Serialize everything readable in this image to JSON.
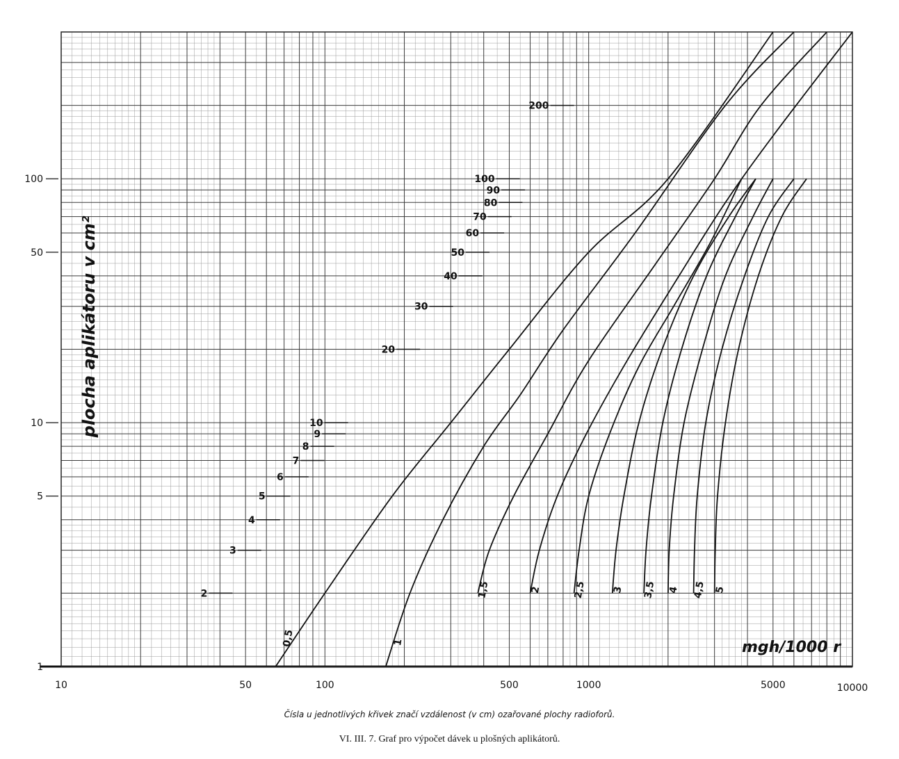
{
  "chart_data": {
    "type": "line",
    "xscale": "log",
    "yscale": "log",
    "xlim": [
      10,
      10000
    ],
    "ylim": [
      1,
      400
    ],
    "grid": true,
    "ylabel": "plocha aplikátoru v cm²",
    "xlabel": "mgh/1000 r",
    "x_ticks": [
      {
        "value": 10,
        "label": "10"
      },
      {
        "value": 50,
        "label": "50"
      },
      {
        "value": 100,
        "label": "100"
      },
      {
        "value": 500,
        "label": "500"
      },
      {
        "value": 1000,
        "label": "1000"
      },
      {
        "value": 5000,
        "label": "5000"
      },
      {
        "value": 10000,
        "label": "10000"
      }
    ],
    "y_ticks": [
      {
        "value": 1,
        "label": "1"
      },
      {
        "value": 5,
        "label": "5"
      },
      {
        "value": 10,
        "label": "10"
      },
      {
        "value": 50,
        "label": "50"
      },
      {
        "value": 100,
        "label": "100"
      }
    ],
    "distance_scale": [
      {
        "label": "2",
        "x": 35,
        "y": 2
      },
      {
        "label": "3",
        "x": 45,
        "y": 3
      },
      {
        "label": "4",
        "x": 53,
        "y": 4
      },
      {
        "label": "5",
        "x": 58,
        "y": 5
      },
      {
        "label": "6",
        "x": 68,
        "y": 6
      },
      {
        "label": "7",
        "x": 78,
        "y": 7
      },
      {
        "label": "8",
        "x": 85,
        "y": 8
      },
      {
        "label": "9",
        "x": 94,
        "y": 9
      },
      {
        "label": "10",
        "x": 96,
        "y": 10
      },
      {
        "label": "20",
        "x": 180,
        "y": 20
      },
      {
        "label": "30",
        "x": 240,
        "y": 30
      },
      {
        "label": "40",
        "x": 310,
        "y": 40
      },
      {
        "label": "50",
        "x": 330,
        "y": 50
      },
      {
        "label": "60",
        "x": 375,
        "y": 60
      },
      {
        "label": "70",
        "x": 400,
        "y": 70
      },
      {
        "label": "80",
        "x": 440,
        "y": 80
      },
      {
        "label": "90",
        "x": 450,
        "y": 90
      },
      {
        "label": "100",
        "x": 430,
        "y": 100
      },
      {
        "label": "200",
        "x": 690,
        "y": 200
      }
    ],
    "series": [
      {
        "name": "0,5",
        "points": [
          [
            65,
            1
          ],
          [
            100,
            2
          ],
          [
            180,
            5
          ],
          [
            300,
            10
          ],
          [
            500,
            20
          ],
          [
            1000,
            50
          ],
          [
            2000,
            100
          ],
          [
            5000,
            400
          ]
        ]
      },
      {
        "name": "1",
        "points": [
          [
            170,
            1
          ],
          [
            210,
            2
          ],
          [
            280,
            4
          ],
          [
            400,
            8
          ],
          [
            550,
            13
          ],
          [
            800,
            24
          ],
          [
            1500,
            60
          ],
          [
            3300,
            200
          ],
          [
            6000,
            400
          ]
        ]
      },
      {
        "name": "1,5",
        "points": [
          [
            380,
            2
          ],
          [
            420,
            3
          ],
          [
            520,
            5
          ],
          [
            700,
            9
          ],
          [
            1000,
            18
          ],
          [
            1800,
            45
          ],
          [
            3000,
            100
          ],
          [
            4500,
            200
          ],
          [
            8000,
            400
          ]
        ]
      },
      {
        "name": "2",
        "points": [
          [
            600,
            2
          ],
          [
            650,
            3
          ],
          [
            760,
            5
          ],
          [
            980,
            9
          ],
          [
            1400,
            18
          ],
          [
            2200,
            40
          ],
          [
            3300,
            80
          ],
          [
            5000,
            150
          ],
          [
            10000,
            400
          ]
        ]
      },
      {
        "name": "2,5",
        "points": [
          [
            880,
            2
          ],
          [
            920,
            3
          ],
          [
            1000,
            5
          ],
          [
            1200,
            9
          ],
          [
            1550,
            17
          ],
          [
            2100,
            30
          ],
          [
            2900,
            55
          ],
          [
            3800,
            100
          ]
        ]
      },
      {
        "name": "3",
        "points": [
          [
            1230,
            2
          ],
          [
            1270,
            3
          ],
          [
            1360,
            5
          ],
          [
            1550,
            10
          ],
          [
            1900,
            20
          ],
          [
            2500,
            40
          ],
          [
            3400,
            70
          ],
          [
            4300,
            100
          ]
        ]
      },
      {
        "name": "3,5",
        "points": [
          [
            1620,
            2
          ],
          [
            1650,
            3
          ],
          [
            1730,
            5
          ],
          [
            1910,
            10
          ],
          [
            2250,
            20
          ],
          [
            2800,
            40
          ],
          [
            3600,
            70
          ],
          [
            4300,
            100
          ]
        ]
      },
      {
        "name": "4",
        "points": [
          [
            2000,
            2
          ],
          [
            2020,
            3
          ],
          [
            2100,
            5
          ],
          [
            2300,
            10
          ],
          [
            2700,
            20
          ],
          [
            3300,
            40
          ],
          [
            4200,
            70
          ],
          [
            5000,
            100
          ]
        ]
      },
      {
        "name": "4,5",
        "points": [
          [
            2500,
            2
          ],
          [
            2520,
            3
          ],
          [
            2580,
            5
          ],
          [
            2780,
            10
          ],
          [
            3200,
            20
          ],
          [
            3900,
            40
          ],
          [
            4800,
            70
          ],
          [
            6000,
            100
          ]
        ]
      },
      {
        "name": "5",
        "points": [
          [
            3000,
            2
          ],
          [
            3020,
            3
          ],
          [
            3080,
            5
          ],
          [
            3300,
            10
          ],
          [
            3700,
            20
          ],
          [
            4400,
            40
          ],
          [
            5400,
            70
          ],
          [
            6700,
            100
          ]
        ]
      }
    ]
  },
  "captions": {
    "note": "Čísla u jednotlivých křivek značí vzdálenost (v cm) ozařované plochy radioforů.",
    "title": "VI. III. 7. Graf pro výpočet dávek u plošných aplikátorů."
  }
}
